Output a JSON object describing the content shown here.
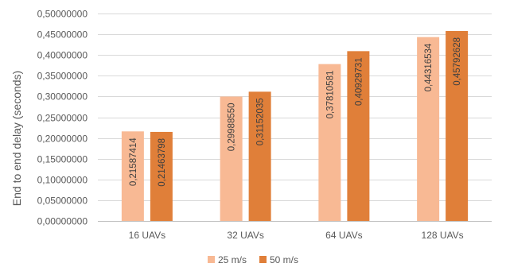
{
  "chart_data": {
    "type": "bar",
    "title": "",
    "xlabel": "",
    "ylabel": "End to end delay (seconds)",
    "categories": [
      "16 UAVs",
      "32 UAVs",
      "64 UAVs",
      "128 UAVs"
    ],
    "series": [
      {
        "name": "25 m/s",
        "color": "#F8B994",
        "values": [
          0.21587414,
          0.2998855,
          0.37810581,
          0.44316534
        ],
        "labels": [
          "0,21587414",
          "0,29988550",
          "0,37810581",
          "0,44316534"
        ]
      },
      {
        "name": "50 m/s",
        "color": "#E07F39",
        "values": [
          0.21463798,
          0.31152035,
          0.40929731,
          0.45792628
        ],
        "labels": [
          "0,21463798",
          "0,31152035",
          "0,40929731",
          "0,45792628"
        ]
      }
    ],
    "ylim": [
      0,
      0.5
    ],
    "yticks": [
      0,
      0.05,
      0.1,
      0.15,
      0.2,
      0.25,
      0.3,
      0.35,
      0.4,
      0.45,
      0.5
    ],
    "ytick_labels": [
      "0,00000000",
      "0,05000000",
      "0,10000000",
      "0,15000000",
      "0,20000000",
      "0,25000000",
      "0,30000000",
      "0,35000000",
      "0,40000000",
      "0,45000000",
      "0,50000000"
    ],
    "grid": true,
    "legend_position": "bottom"
  }
}
